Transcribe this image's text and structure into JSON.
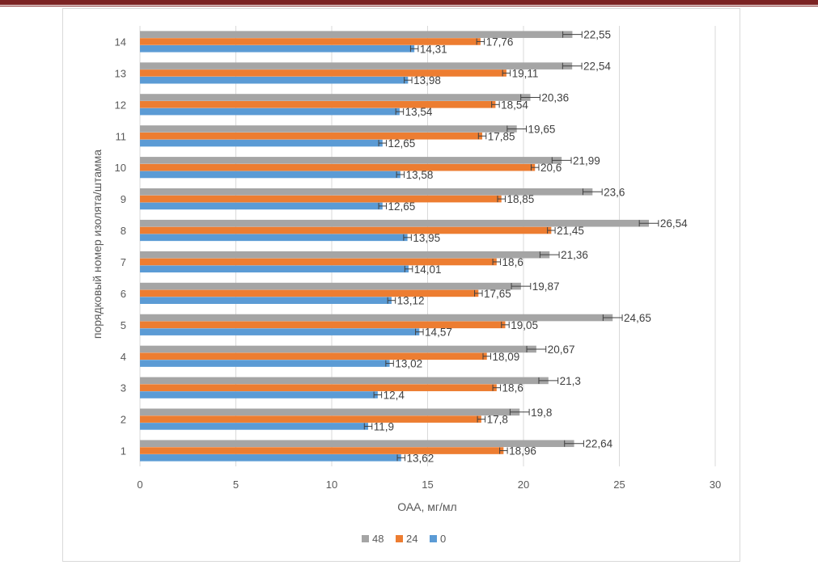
{
  "chart_data": {
    "type": "bar",
    "orientation": "horizontal",
    "categories": [
      "1",
      "2",
      "3",
      "4",
      "5",
      "6",
      "7",
      "8",
      "9",
      "10",
      "11",
      "12",
      "13",
      "14"
    ],
    "series": [
      {
        "name": "48",
        "color": "#a5a5a5",
        "values": [
          22.64,
          19.8,
          21.3,
          20.67,
          24.65,
          19.87,
          21.36,
          26.54,
          23.6,
          21.99,
          19.65,
          20.36,
          22.54,
          22.55
        ],
        "labels": [
          "22,64",
          "19,8",
          "21,3",
          "20,67",
          "24,65",
          "19,87",
          "21,36",
          "26,54",
          "23,6",
          "21,99",
          "19,65",
          "20,36",
          "22,54",
          "22,55"
        ],
        "errors": [
          0.5,
          0.5,
          0.5,
          0.5,
          0.5,
          0.5,
          0.5,
          0.5,
          0.5,
          0.5,
          0.5,
          0.5,
          0.5,
          0.5
        ]
      },
      {
        "name": "24",
        "color": "#ed7d31",
        "values": [
          18.96,
          17.8,
          18.6,
          18.09,
          19.05,
          17.65,
          18.6,
          21.45,
          18.85,
          20.6,
          17.85,
          18.54,
          19.11,
          17.76
        ],
        "labels": [
          "18,96",
          "17,8",
          "18,6",
          "18,09",
          "19,05",
          "17,65",
          "18,6",
          "21,45",
          "18,85",
          "20,6",
          "17,85",
          "18,54",
          "19,11",
          "17,76"
        ],
        "errors": [
          0.2,
          0.2,
          0.2,
          0.2,
          0.2,
          0.2,
          0.2,
          0.2,
          0.2,
          0.2,
          0.2,
          0.2,
          0.2,
          0.2
        ]
      },
      {
        "name": "0",
        "color": "#5b9bd5",
        "values": [
          13.62,
          11.9,
          12.4,
          13.02,
          14.57,
          13.12,
          14.01,
          13.95,
          12.65,
          13.58,
          12.65,
          13.54,
          13.98,
          14.31
        ],
        "labels": [
          "13,62",
          "11,9",
          "12,4",
          "13,02",
          "14,57",
          "13,12",
          "14,01",
          "13,95",
          "12,65",
          "13,58",
          "12,65",
          "13,54",
          "13,98",
          "14,31"
        ],
        "errors": [
          0.2,
          0.2,
          0.2,
          0.2,
          0.2,
          0.2,
          0.2,
          0.2,
          0.2,
          0.2,
          0.2,
          0.2,
          0.2,
          0.2
        ]
      }
    ],
    "x_ticks": [
      "0",
      "5",
      "10",
      "15",
      "20",
      "25",
      "30"
    ],
    "xlim": [
      0,
      30
    ],
    "xlabel": "ОАА, мг/мл",
    "ylabel": "порядковый номер изолята/штамма",
    "grid": "vertical",
    "legend_position": "bottom",
    "legend": [
      {
        "label": "48",
        "color": "#a5a5a5"
      },
      {
        "label": "24",
        "color": "#ed7d31"
      },
      {
        "label": "0",
        "color": "#5b9bd5"
      }
    ]
  }
}
